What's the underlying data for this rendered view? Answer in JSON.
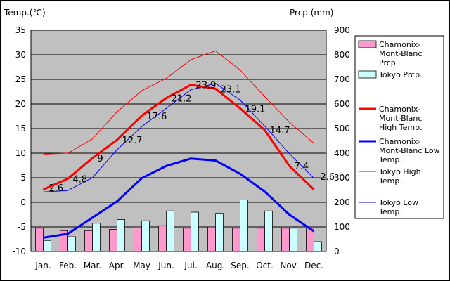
{
  "chart_data": {
    "type": "bar+line",
    "categories": [
      "Jan.",
      "Feb.",
      "Mar.",
      "Apr.",
      "May",
      "Jun.",
      "Jul.",
      "Aug.",
      "Sep.",
      "Oct.",
      "Nov.",
      "Dec."
    ],
    "y_left": {
      "label": "Temp.(℃)",
      "min": -10,
      "max": 35,
      "step": 5
    },
    "y_right": {
      "label": "Prcp.(mm)",
      "min": 0,
      "max": 900,
      "step": 100
    },
    "grid": "horizontal",
    "legend_placement": "right",
    "series": [
      {
        "name": "Chamonix-\nMont-Blanc\nPrcp.",
        "kind": "bar",
        "axis": "right",
        "color": "#ff99cc",
        "values": [
          95,
          85,
          85,
          90,
          100,
          105,
          95,
          100,
          95,
          95,
          95,
          95
        ]
      },
      {
        "name": "Tokyo Prcp.",
        "kind": "bar",
        "axis": "right",
        "color": "#ccffff",
        "values": [
          45,
          60,
          115,
          130,
          125,
          165,
          160,
          155,
          210,
          165,
          95,
          40
        ]
      },
      {
        "name": "Chamonix-\nMont-Blanc\nHigh Temp.",
        "kind": "line",
        "axis": "left",
        "color": "#ff0000",
        "width": 3,
        "values": [
          2.6,
          4.8,
          9,
          12.7,
          17.6,
          21.2,
          23.9,
          23.1,
          19.1,
          14.7,
          7.4,
          2.6
        ],
        "labels": [
          "2.6",
          "4.8",
          "9",
          "12.7",
          "17.6",
          "21.2",
          "23.9",
          "23.1",
          "19.1",
          "14.7",
          "7.4",
          "2.6"
        ]
      },
      {
        "name": "Chamonix-\nMont-Blanc Low\nTemp.",
        "kind": "line",
        "axis": "left",
        "color": "#0000ff",
        "width": 3,
        "values": [
          -7.2,
          -6.4,
          -3.1,
          0.2,
          4.9,
          7.4,
          8.9,
          8.5,
          5.8,
          2.2,
          -2.5,
          -5.9
        ]
      },
      {
        "name": "Tokyo High\nTemp.",
        "kind": "line",
        "axis": "left",
        "color": "#ff0000",
        "width": 1,
        "values": [
          9.8,
          10.0,
          12.9,
          18.4,
          22.7,
          25.2,
          29.0,
          30.8,
          26.9,
          21.5,
          16.3,
          12.0
        ]
      },
      {
        "name": "Tokyo Low\nTemp.",
        "kind": "line",
        "axis": "left",
        "color": "#0000ff",
        "width": 1,
        "values": [
          2.1,
          2.4,
          5.0,
          10.7,
          15.4,
          19.1,
          22.9,
          24.2,
          20.8,
          15.5,
          9.9,
          4.9
        ]
      }
    ]
  }
}
